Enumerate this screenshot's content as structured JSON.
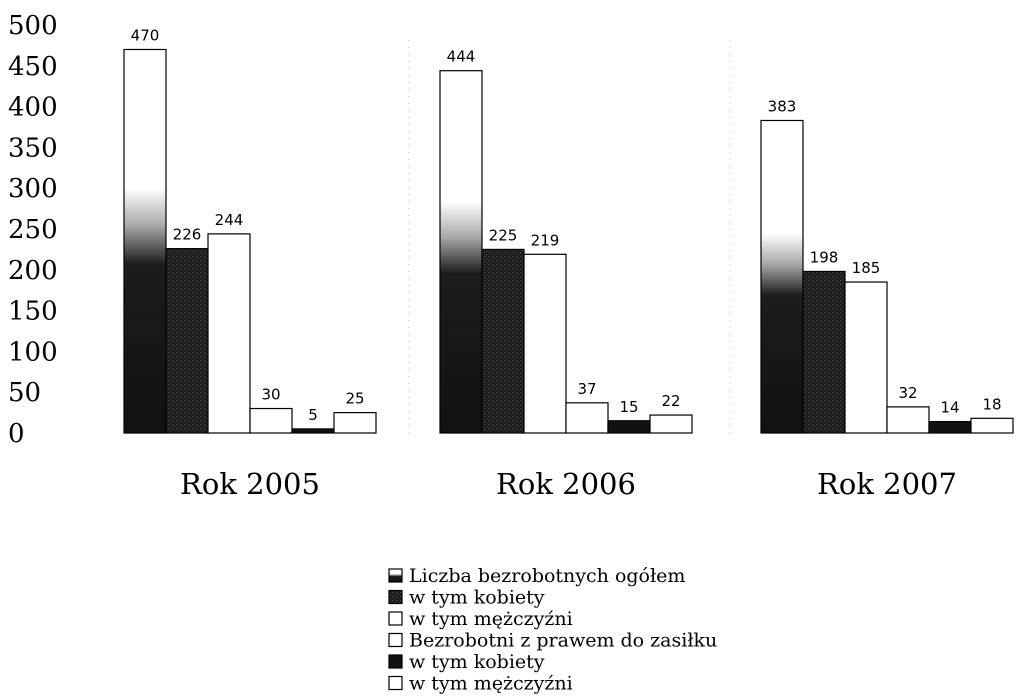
{
  "chart_data": {
    "type": "bar",
    "title": "",
    "xlabel": "",
    "ylabel": "",
    "ylim": [
      0,
      500
    ],
    "yticks": [
      0,
      50,
      100,
      150,
      200,
      250,
      300,
      350,
      400,
      450,
      500
    ],
    "grid": false,
    "legend_position": "bottom",
    "categories": [
      "Rok 2005",
      "Rok 2006",
      "Rok 2007"
    ],
    "series": [
      {
        "name": "Liczba bezrobotnych ogółem",
        "values": [
          470,
          444,
          383
        ],
        "style": "gradient"
      },
      {
        "name": "w tym kobiety",
        "values": [
          226,
          225,
          198
        ],
        "style": "dark-textured"
      },
      {
        "name": "w tym mężczyźni",
        "values": [
          244,
          219,
          185
        ],
        "style": "white"
      },
      {
        "name": "Bezrobotni z prawem do zasiłku",
        "values": [
          30,
          37,
          32
        ],
        "style": "white"
      },
      {
        "name": "w tym kobiety",
        "values": [
          5,
          15,
          14
        ],
        "style": "black"
      },
      {
        "name": "w tym mężczyźni",
        "values": [
          25,
          22,
          18
        ],
        "style": "white"
      }
    ],
    "colors": {
      "black": "#111111",
      "dark": "#1e1e1e",
      "white": "#ffffff",
      "stroke": "#000000"
    }
  }
}
